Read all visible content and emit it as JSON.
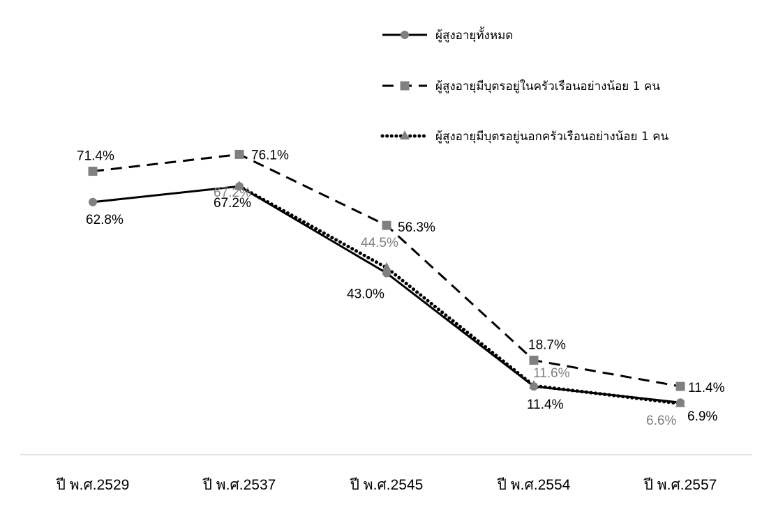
{
  "chart_data": {
    "type": "line",
    "title": "",
    "xlabel": "",
    "ylabel": "",
    "ylim": [
      0,
      80
    ],
    "grid": false,
    "legend_position": "top-right",
    "categories": [
      "ปี พ.ศ.2529",
      "ปี พ.ศ.2537",
      "ปี พ.ศ.2545",
      "ปี พ.ศ.2554",
      "ปี พ.ศ.2557"
    ],
    "series": [
      {
        "name": "ผู้สูงอายุทั้งหมด",
        "style": "solid",
        "marker": "circle",
        "line_color": "#000000",
        "marker_color": "#808080",
        "label_color": "#000000",
        "values": [
          62.8,
          67.2,
          43.0,
          11.4,
          6.9
        ],
        "labels": [
          "62.8%",
          "67.2%",
          "43.0%",
          "11.4%",
          "6.9%"
        ]
      },
      {
        "name": "ผู้สูงอายุมีบุตรอยู่ในครัวเรือนอย่างน้อย 1 คน",
        "style": "dashed",
        "marker": "square",
        "line_color": "#000000",
        "marker_color": "#808080",
        "label_color": "#000000",
        "values": [
          71.4,
          76.1,
          56.3,
          18.7,
          11.4
        ],
        "labels": [
          "71.4%",
          "76.1%",
          "56.3%",
          "18.7%",
          "11.4%"
        ]
      },
      {
        "name": "ผู้สูงอายุมีบุตรอยู่นอกครัวเรือนอย่างน้อย 1 คน",
        "style": "dotted",
        "marker": "triangle",
        "line_color": "#000000",
        "marker_color": "#808080",
        "label_color": "#808080",
        "values": [
          null,
          67.2,
          44.5,
          11.6,
          6.6
        ],
        "labels": [
          null,
          "67.2%",
          "44.5%",
          "11.6%",
          "6.6%"
        ]
      }
    ]
  },
  "colors": {
    "axis": "#d9d9d9",
    "marker": "#808080",
    "line": "#000000"
  }
}
